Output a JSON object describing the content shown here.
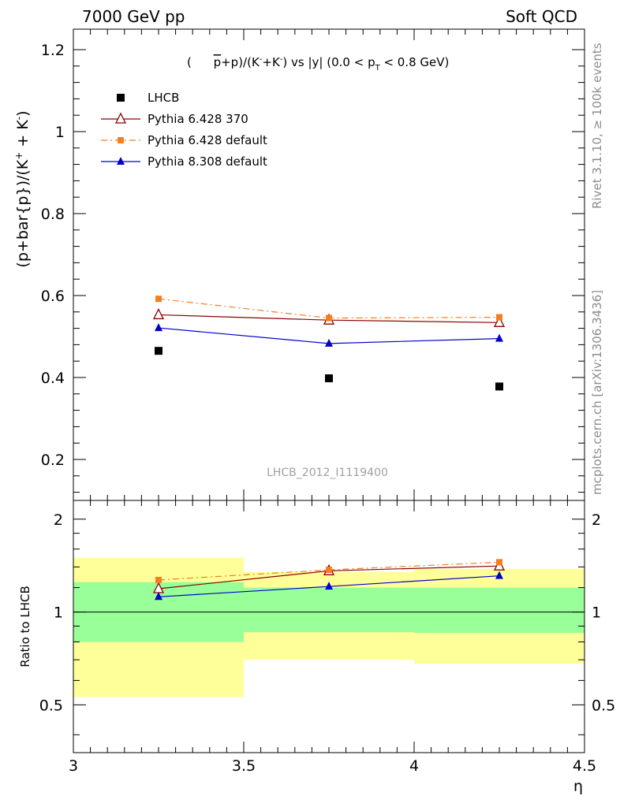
{
  "header": {
    "left": "7000 GeV pp",
    "right": "Soft QCD"
  },
  "side_text": {
    "rivet": "Rivet 3.1.10, ≥ 100k events",
    "mcplots": "mcplots.cern.ch [arXiv:1306.3436]"
  },
  "watermark": "LHCB_2012_I1119400",
  "colors": {
    "data": "#000000",
    "pythia6_370": "#8b0000",
    "pythia6_default": "#f47e20",
    "pythia8_default": "#0000cc",
    "band_inner": "#99ff99",
    "band_outer": "#ffff99"
  },
  "chart_data": [
    {
      "type": "scatter",
      "title": "(p̄+p)/(K⁻+K⁻) vs |y| (0.0 < pₜ < 0.8 GeV)",
      "ylabel": "(p+bar{p})/(K⁺ + K⁻)",
      "xlabel": "",
      "xlim": [
        3.0,
        4.5
      ],
      "ylim": [
        0.1,
        1.25
      ],
      "x_ticks": [
        "3",
        "3.5",
        "4",
        "4.5"
      ],
      "y_ticks": [
        "0.2",
        "0.4",
        "0.6",
        "0.8",
        "1",
        "1.2"
      ],
      "legend_position": "top-left",
      "series": [
        {
          "name": "LHCB",
          "marker": "filled-square",
          "x": [
            3.25,
            3.75,
            4.25
          ],
          "y": [
            0.465,
            0.398,
            0.378
          ]
        },
        {
          "name": "Pythia 6.428 370",
          "marker": "open-triangle",
          "line": "solid",
          "x": [
            3.25,
            3.75,
            4.25
          ],
          "y": [
            0.553,
            0.54,
            0.534
          ]
        },
        {
          "name": "Pythia 6.428 default",
          "marker": "filled-square",
          "line": "dash-dot",
          "x": [
            3.25,
            3.75,
            4.25
          ],
          "y": [
            0.592,
            0.545,
            0.547
          ]
        },
        {
          "name": "Pythia 8.308 default",
          "marker": "filled-triangle",
          "line": "solid",
          "x": [
            3.25,
            3.75,
            4.25
          ],
          "y": [
            0.521,
            0.483,
            0.495
          ]
        }
      ]
    },
    {
      "type": "line",
      "title": "",
      "ylabel": "Ratio to LHCB",
      "xlabel": "η",
      "xlim": [
        3.0,
        4.5
      ],
      "ylim": [
        0.35,
        2.3
      ],
      "x_ticks": [
        "3",
        "3.5",
        "4",
        "4.5"
      ],
      "y_ticks": [
        "0.5",
        "1",
        "2"
      ],
      "bands": [
        {
          "x0": 3.0,
          "x1": 3.5,
          "inner": [
            0.8,
            1.25
          ],
          "outer": [
            0.53,
            1.5
          ]
        },
        {
          "x0": 3.5,
          "x1": 4.0,
          "inner": [
            0.86,
            1.2
          ],
          "outer": [
            0.7,
            1.35
          ]
        },
        {
          "x0": 4.0,
          "x1": 4.5,
          "inner": [
            0.855,
            1.2
          ],
          "outer": [
            0.68,
            1.38
          ]
        }
      ],
      "series": [
        {
          "name": "Pythia 6.428 370",
          "x": [
            3.25,
            3.75,
            4.25
          ],
          "y": [
            1.19,
            1.36,
            1.41
          ]
        },
        {
          "name": "Pythia 6.428 default",
          "x": [
            3.25,
            3.75,
            4.25
          ],
          "y": [
            1.27,
            1.37,
            1.45
          ]
        },
        {
          "name": "Pythia 8.308 default",
          "x": [
            3.25,
            3.75,
            4.25
          ],
          "y": [
            1.12,
            1.21,
            1.31
          ]
        }
      ]
    }
  ]
}
